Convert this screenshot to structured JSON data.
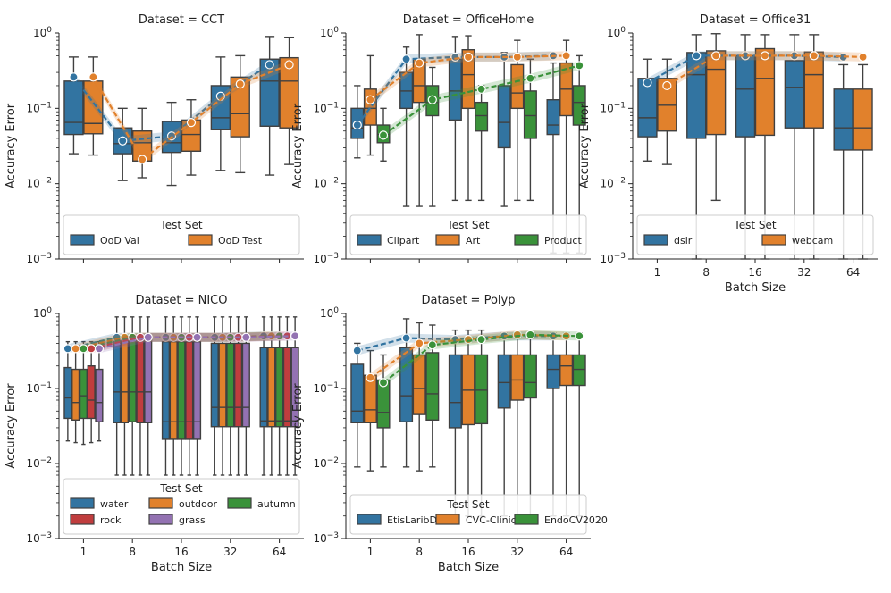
{
  "chart_data": [
    {
      "type": "box",
      "title": "Dataset = CCT",
      "xlabel": "",
      "ylabel": "Accuracy Error",
      "yscale": "log",
      "ylim": [
        0.001,
        1
      ],
      "y_ticks": [
        "10^-3",
        "10^-2",
        "10^-1",
        "10^0"
      ],
      "categories": [
        "1",
        "8",
        "16",
        "32",
        "64"
      ],
      "show_x_tick_labels": false,
      "legend": {
        "title": "Test Set",
        "ncol": 2,
        "location": "bottom"
      },
      "series": [
        {
          "name": "OoD Val",
          "color": "#3274a1",
          "boxes": [
            [
              0.025,
              0.045,
              0.065,
              0.23,
              0.48
            ],
            [
              0.011,
              0.025,
              0.034,
              0.055,
              0.1
            ],
            [
              0.0095,
              0.026,
              0.035,
              0.067,
              0.12
            ],
            [
              0.015,
              0.052,
              0.075,
              0.2,
              0.48
            ],
            [
              0.013,
              0.058,
              0.23,
              0.45,
              0.9
            ]
          ],
          "mean": [
            0.26,
            0.037,
            0.043,
            0.145,
            0.38
          ]
        },
        {
          "name": "OoD Test",
          "color": "#e1812c",
          "boxes": [
            [
              0.024,
              0.046,
              0.063,
              0.23,
              0.48
            ],
            [
              0.012,
              0.02,
              0.035,
              0.05,
              0.1
            ],
            [
              0.013,
              0.027,
              0.045,
              0.07,
              0.13
            ],
            [
              0.014,
              0.042,
              0.085,
              0.26,
              0.5
            ],
            [
              0.018,
              0.055,
              0.23,
              0.47,
              0.88
            ]
          ],
          "mean": [
            0.26,
            0.021,
            0.065,
            0.21,
            0.38
          ]
        }
      ]
    },
    {
      "type": "box",
      "title": "Dataset = OfficeHome",
      "xlabel": "",
      "ylabel": "Accuracy Error",
      "yscale": "log",
      "ylim": [
        0.001,
        1
      ],
      "y_ticks": [
        "10^-3",
        "10^-2",
        "10^-1",
        "10^0"
      ],
      "categories": [
        "1",
        "8",
        "16",
        "32",
        "64"
      ],
      "show_x_tick_labels": false,
      "legend": {
        "title": "Test Set",
        "ncol": 3,
        "location": "bottom"
      },
      "series": [
        {
          "name": "Clipart",
          "color": "#3274a1",
          "boxes": [
            [
              0.022,
              0.04,
              0.055,
              0.1,
              0.2
            ],
            [
              0.005,
              0.1,
              0.17,
              0.3,
              0.65
            ],
            [
              0.006,
              0.07,
              0.17,
              0.45,
              0.9
            ],
            [
              0.005,
              0.03,
              0.065,
              0.2,
              0.55
            ],
            [
              0.0012,
              0.045,
              0.06,
              0.13,
              0.4
            ]
          ],
          "mean": [
            0.06,
            0.45,
            0.48,
            0.48,
            0.5
          ]
        },
        {
          "name": "Art",
          "color": "#e1812c",
          "boxes": [
            [
              0.024,
              0.06,
              0.1,
              0.18,
              0.5
            ],
            [
              0.005,
              0.12,
              0.2,
              0.45,
              0.95
            ],
            [
              0.006,
              0.1,
              0.28,
              0.6,
              0.92
            ],
            [
              0.006,
              0.1,
              0.16,
              0.38,
              0.8
            ],
            [
              0.0012,
              0.08,
              0.18,
              0.4,
              0.8
            ]
          ],
          "mean": [
            0.13,
            0.4,
            0.48,
            0.48,
            0.5
          ]
        },
        {
          "name": "Product",
          "color": "#3a923a",
          "boxes": [
            [
              0.02,
              0.035,
              0.045,
              0.06,
              0.1
            ],
            [
              0.005,
              0.08,
              0.12,
              0.2,
              0.35
            ],
            [
              0.006,
              0.05,
              0.08,
              0.12,
              0.2
            ],
            [
              0.006,
              0.04,
              0.08,
              0.17,
              0.45
            ],
            [
              0.0012,
              0.06,
              0.12,
              0.2,
              0.5
            ]
          ],
          "mean": [
            0.044,
            0.13,
            0.18,
            0.25,
            0.37
          ]
        }
      ]
    },
    {
      "type": "box",
      "title": "Dataset = Office31",
      "xlabel": "Batch Size",
      "ylabel": "Accuracy Error",
      "yscale": "log",
      "ylim": [
        0.001,
        1
      ],
      "y_ticks": [
        "10^-3",
        "10^-2",
        "10^-1",
        "10^0"
      ],
      "categories": [
        "1",
        "8",
        "16",
        "32",
        "64"
      ],
      "show_x_tick_labels": true,
      "legend": {
        "title": "Test Set",
        "ncol": 2,
        "location": "bottom"
      },
      "series": [
        {
          "name": "dslr",
          "color": "#3274a1",
          "boxes": [
            [
              0.02,
              0.042,
              0.075,
              0.25,
              0.45
            ],
            [
              0.001,
              0.04,
              0.28,
              0.55,
              0.95
            ],
            [
              0.001,
              0.042,
              0.18,
              0.5,
              0.95
            ],
            [
              0.001,
              0.055,
              0.19,
              0.43,
              0.95
            ],
            [
              0.001,
              0.028,
              0.055,
              0.18,
              0.38
            ]
          ],
          "mean": [
            0.22,
            0.5,
            0.5,
            0.5,
            0.48
          ]
        },
        {
          "name": "webcam",
          "color": "#e1812c",
          "boxes": [
            [
              0.018,
              0.05,
              0.11,
              0.25,
              0.45
            ],
            [
              0.006,
              0.045,
              0.33,
              0.58,
              0.98
            ],
            [
              0.001,
              0.044,
              0.25,
              0.62,
              0.95
            ],
            [
              0.001,
              0.055,
              0.28,
              0.56,
              0.95
            ],
            [
              0.001,
              0.028,
              0.055,
              0.18,
              0.38
            ]
          ],
          "mean": [
            0.2,
            0.5,
            0.5,
            0.5,
            0.48
          ]
        }
      ]
    },
    {
      "type": "box",
      "title": "Dataset = NICO",
      "xlabel": "Batch Size",
      "ylabel": "Accuracy Error",
      "yscale": "log",
      "ylim": [
        0.001,
        1
      ],
      "y_ticks": [
        "10^-3",
        "10^-2",
        "10^-1",
        "10^0"
      ],
      "categories": [
        "1",
        "8",
        "16",
        "32",
        "64"
      ],
      "show_x_tick_labels": true,
      "legend": {
        "title": "Test Set",
        "ncol": 3,
        "location": "bottom"
      },
      "series": [
        {
          "name": "water",
          "color": "#3274a1",
          "boxes": [
            [
              0.02,
              0.04,
              0.075,
              0.19,
              0.42
            ],
            [
              0.007,
              0.035,
              0.09,
              0.48,
              0.9
            ],
            [
              0.007,
              0.021,
              0.036,
              0.42,
              0.9
            ],
            [
              0.007,
              0.031,
              0.056,
              0.4,
              0.9
            ],
            [
              0.007,
              0.031,
              0.037,
              0.35,
              0.9
            ]
          ],
          "mean": [
            0.34,
            0.48,
            0.48,
            0.48,
            0.5
          ]
        },
        {
          "name": "outdoor",
          "color": "#e1812c",
          "boxes": [
            [
              0.019,
              0.038,
              0.065,
              0.18,
              0.42
            ],
            [
              0.007,
              0.035,
              0.09,
              0.48,
              0.9
            ],
            [
              0.007,
              0.021,
              0.036,
              0.42,
              0.9
            ],
            [
              0.007,
              0.031,
              0.056,
              0.4,
              0.9
            ],
            [
              0.007,
              0.031,
              0.037,
              0.35,
              0.9
            ]
          ],
          "mean": [
            0.34,
            0.48,
            0.48,
            0.48,
            0.5
          ]
        },
        {
          "name": "autumn",
          "color": "#3a923a",
          "boxes": [
            [
              0.018,
              0.04,
              0.08,
              0.18,
              0.42
            ],
            [
              0.007,
              0.036,
              0.09,
              0.48,
              0.9
            ],
            [
              0.007,
              0.021,
              0.036,
              0.42,
              0.9
            ],
            [
              0.007,
              0.031,
              0.056,
              0.4,
              0.9
            ],
            [
              0.007,
              0.031,
              0.037,
              0.35,
              0.9
            ]
          ],
          "mean": [
            0.34,
            0.48,
            0.48,
            0.48,
            0.5
          ]
        },
        {
          "name": "rock",
          "color": "#c03d3e",
          "boxes": [
            [
              0.019,
              0.04,
              0.07,
              0.2,
              0.42
            ],
            [
              0.007,
              0.035,
              0.09,
              0.48,
              0.9
            ],
            [
              0.007,
              0.021,
              0.036,
              0.42,
              0.9
            ],
            [
              0.007,
              0.031,
              0.056,
              0.4,
              0.9
            ],
            [
              0.007,
              0.031,
              0.037,
              0.35,
              0.9
            ]
          ],
          "mean": [
            0.34,
            0.48,
            0.48,
            0.48,
            0.5
          ]
        },
        {
          "name": "grass",
          "color": "#9372b2",
          "boxes": [
            [
              0.02,
              0.036,
              0.065,
              0.18,
              0.42
            ],
            [
              0.007,
              0.035,
              0.09,
              0.48,
              0.9
            ],
            [
              0.007,
              0.021,
              0.036,
              0.42,
              0.9
            ],
            [
              0.007,
              0.031,
              0.056,
              0.4,
              0.9
            ],
            [
              0.007,
              0.031,
              0.037,
              0.35,
              0.9
            ]
          ],
          "mean": [
            0.34,
            0.48,
            0.48,
            0.48,
            0.5
          ]
        }
      ]
    },
    {
      "type": "box",
      "title": "Dataset = Polyp",
      "xlabel": "Batch Size",
      "ylabel": "Accuracy Error",
      "yscale": "log",
      "ylim": [
        0.001,
        1
      ],
      "y_ticks": [
        "10^-3",
        "10^-2",
        "10^-1",
        "10^0"
      ],
      "categories": [
        "1",
        "8",
        "16",
        "32",
        "64"
      ],
      "show_x_tick_labels": true,
      "legend": {
        "title": "Test Set",
        "ncol": 3,
        "location": "bottom"
      },
      "series": [
        {
          "name": "EtisLaribDB",
          "color": "#3274a1",
          "boxes": [
            [
              0.009,
              0.035,
              0.05,
              0.21,
              0.4
            ],
            [
              0.009,
              0.036,
              0.08,
              0.35,
              0.85
            ],
            [
              0.002,
              0.03,
              0.065,
              0.28,
              0.6
            ],
            [
              0.002,
              0.055,
              0.12,
              0.28,
              0.55
            ],
            [
              0.002,
              0.1,
              0.18,
              0.28,
              0.55
            ]
          ],
          "mean": [
            0.32,
            0.47,
            0.45,
            0.5,
            0.5
          ]
        },
        {
          "name": "CVC-ClinicDB",
          "color": "#e1812c",
          "boxes": [
            [
              0.008,
              0.035,
              0.052,
              0.15,
              0.32
            ],
            [
              0.008,
              0.045,
              0.1,
              0.28,
              0.75
            ],
            [
              0.002,
              0.033,
              0.095,
              0.28,
              0.6
            ],
            [
              0.002,
              0.07,
              0.13,
              0.28,
              0.55
            ],
            [
              0.002,
              0.11,
              0.2,
              0.28,
              0.55
            ]
          ],
          "mean": [
            0.14,
            0.4,
            0.45,
            0.52,
            0.5
          ]
        },
        {
          "name": "EndoCV2020",
          "color": "#3a923a",
          "boxes": [
            [
              0.009,
              0.03,
              0.048,
              0.13,
              0.28
            ],
            [
              0.009,
              0.038,
              0.085,
              0.3,
              0.7
            ],
            [
              0.002,
              0.034,
              0.095,
              0.28,
              0.6
            ],
            [
              0.002,
              0.075,
              0.12,
              0.28,
              0.55
            ],
            [
              0.002,
              0.11,
              0.18,
              0.28,
              0.55
            ]
          ],
          "mean": [
            0.12,
            0.38,
            0.45,
            0.52,
            0.5
          ]
        }
      ]
    }
  ]
}
